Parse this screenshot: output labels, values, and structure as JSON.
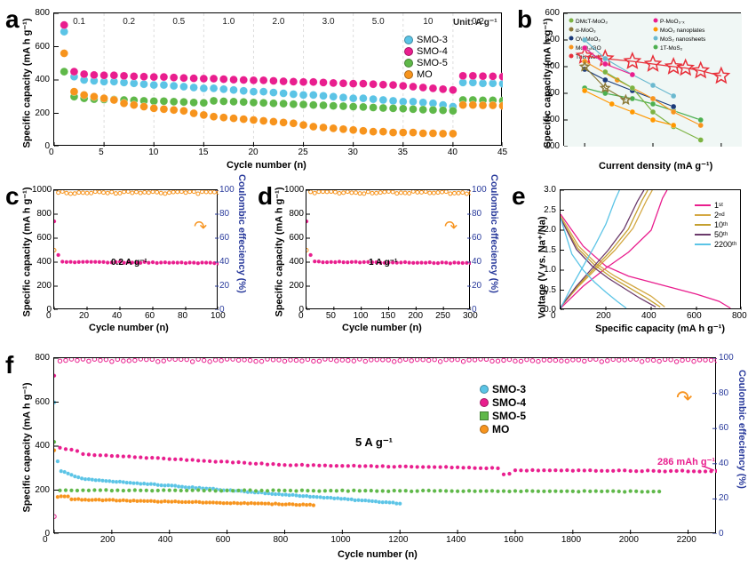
{
  "panel_a": {
    "label": "a",
    "type": "scatter",
    "xlabel": "Cycle number (n)",
    "ylabel": "Specific capacity (mA h g⁻¹)",
    "xlim": [
      0,
      45
    ],
    "ylim": [
      0,
      800
    ],
    "xtick_step": 5,
    "ytick_step": 200,
    "bg": "#ffffff",
    "rate_labels": [
      "0.1",
      "0.2",
      "0.5",
      "1.0",
      "2.0",
      "3.0",
      "5.0",
      "10",
      "0.2"
    ],
    "rate_note": "Unit: A g⁻¹",
    "grid_color": "#dddddd",
    "series": [
      {
        "name": "SMO-3",
        "color": "#5bc4e6",
        "x": [
          1,
          2,
          3,
          4,
          5,
          6,
          7,
          8,
          9,
          10,
          11,
          12,
          13,
          14,
          15,
          16,
          17,
          18,
          19,
          20,
          21,
          22,
          23,
          24,
          25,
          26,
          27,
          28,
          29,
          30,
          31,
          32,
          33,
          34,
          35,
          36,
          37,
          38,
          39,
          40,
          41,
          42,
          43,
          44,
          45
        ],
        "y": [
          690,
          420,
          400,
          395,
          390,
          390,
          385,
          380,
          375,
          370,
          370,
          365,
          360,
          355,
          350,
          350,
          345,
          340,
          335,
          330,
          330,
          325,
          320,
          315,
          310,
          310,
          305,
          300,
          295,
          290,
          290,
          285,
          280,
          275,
          270,
          270,
          265,
          260,
          250,
          240,
          385,
          385,
          380,
          380,
          378
        ]
      },
      {
        "name": "SMO-4",
        "color": "#e91e8e",
        "x": [
          1,
          2,
          3,
          4,
          5,
          6,
          7,
          8,
          9,
          10,
          11,
          12,
          13,
          14,
          15,
          16,
          17,
          18,
          19,
          20,
          21,
          22,
          23,
          24,
          25,
          26,
          27,
          28,
          29,
          30,
          31,
          32,
          33,
          34,
          35,
          36,
          37,
          38,
          39,
          40,
          41,
          42,
          43,
          44,
          45
        ],
        "y": [
          730,
          450,
          435,
          430,
          428,
          428,
          425,
          422,
          420,
          418,
          418,
          415,
          412,
          410,
          408,
          408,
          405,
          402,
          400,
          398,
          398,
          395,
          392,
          390,
          388,
          388,
          385,
          382,
          380,
          378,
          378,
          375,
          372,
          370,
          365,
          360,
          355,
          350,
          345,
          340,
          425,
          425,
          423,
          422,
          420
        ]
      },
      {
        "name": "SMO-5",
        "color": "#5fb849",
        "x": [
          1,
          2,
          3,
          4,
          5,
          6,
          7,
          8,
          9,
          10,
          11,
          12,
          13,
          14,
          15,
          16,
          17,
          18,
          19,
          20,
          21,
          22,
          23,
          24,
          25,
          26,
          27,
          28,
          29,
          30,
          31,
          32,
          33,
          34,
          35,
          36,
          37,
          38,
          39,
          40,
          41,
          42,
          43,
          44,
          45
        ],
        "y": [
          450,
          300,
          290,
          285,
          283,
          283,
          280,
          278,
          275,
          273,
          273,
          270,
          268,
          265,
          263,
          275,
          272,
          270,
          268,
          265,
          263,
          260,
          258,
          255,
          253,
          250,
          248,
          245,
          243,
          240,
          238,
          235,
          232,
          230,
          228,
          225,
          222,
          220,
          218,
          215,
          280,
          280,
          278,
          278,
          276
        ]
      },
      {
        "name": "MO",
        "color": "#f7941d",
        "x": [
          1,
          2,
          3,
          4,
          5,
          6,
          7,
          8,
          9,
          10,
          11,
          12,
          13,
          14,
          15,
          16,
          17,
          18,
          19,
          20,
          21,
          22,
          23,
          24,
          25,
          26,
          27,
          28,
          29,
          30,
          31,
          32,
          33,
          34,
          35,
          36,
          37,
          38,
          39,
          40,
          41,
          42,
          43,
          44,
          45
        ],
        "y": [
          560,
          330,
          310,
          300,
          290,
          280,
          260,
          250,
          240,
          230,
          225,
          220,
          215,
          200,
          190,
          180,
          175,
          170,
          165,
          160,
          155,
          150,
          145,
          140,
          130,
          120,
          115,
          110,
          105,
          100,
          95,
          90,
          90,
          85,
          85,
          85,
          80,
          80,
          78,
          78,
          250,
          250,
          248,
          248,
          245
        ]
      }
    ]
  },
  "panel_b": {
    "label": "b",
    "type": "scatter-log",
    "xlabel": "Current density (mA g⁻¹)",
    "ylabel": "Specific capacity (mA h g⁻¹)",
    "xlim_log": [
      50,
      20000
    ],
    "ylim": [
      100,
      600
    ],
    "ytick_step": 100,
    "bg": "#f0f7f5",
    "legend_items": [
      {
        "name": "DMcT-MoO₃",
        "color": "#7cb342",
        "marker": "circle"
      },
      {
        "name": "P-MoO₃·ₓ",
        "color": "#e91e8e",
        "marker": "square"
      },
      {
        "name": "α-MoO₃",
        "color": "#8d7b3a",
        "marker": "star"
      },
      {
        "name": "MoO₃ nanoplates",
        "color": "#ff9800",
        "marker": "circle"
      },
      {
        "name": "OV-MoO₃",
        "color": "#1a3a7a",
        "marker": "diamond"
      },
      {
        "name": "MoS₂ nanosheets",
        "color": "#6bb9cf",
        "marker": "hex"
      },
      {
        "name": "MoO₃/GO",
        "color": "#f7941d",
        "marker": "square"
      },
      {
        "name": "1T-MoS₂",
        "color": "#4caf50",
        "marker": "triangle"
      },
      {
        "name": "This work",
        "color": "#e8303a",
        "marker": "star"
      }
    ],
    "series": [
      {
        "name": "This work",
        "color": "#e8303a",
        "marker": "star",
        "size": 9,
        "x": [
          100,
          200,
          500,
          1000,
          2000,
          3000,
          5000,
          10000
        ],
        "y": [
          440,
          430,
          420,
          410,
          400,
          395,
          385,
          365
        ]
      },
      {
        "name": "1T-MoS₂",
        "color": "#4caf50",
        "marker": "triangle",
        "x": [
          100,
          200,
          500,
          1000,
          2000,
          5000
        ],
        "y": [
          320,
          300,
          280,
          260,
          235,
          200
        ]
      },
      {
        "name": "MoS₂",
        "color": "#6bb9cf",
        "marker": "hex",
        "x": [
          100,
          200,
          500,
          1000,
          2000
        ],
        "y": [
          500,
          430,
          370,
          330,
          290
        ]
      },
      {
        "name": "OV-MoO₃",
        "color": "#1a3a7a",
        "marker": "diamond",
        "x": [
          100,
          200,
          500,
          1000,
          2000
        ],
        "y": [
          390,
          350,
          310,
          280,
          250
        ]
      },
      {
        "name": "MoO₃/GO",
        "color": "#f7941d",
        "marker": "square",
        "x": [
          100,
          300,
          1000,
          2000,
          5000
        ],
        "y": [
          420,
          350,
          280,
          230,
          180
        ]
      },
      {
        "name": "DMcT",
        "color": "#7cb342",
        "marker": "circle",
        "x": [
          200,
          500,
          1000,
          2000,
          5000
        ],
        "y": [
          380,
          320,
          230,
          175,
          125
        ]
      },
      {
        "name": "P-MoO₃",
        "color": "#e91e8e",
        "marker": "square",
        "x": [
          100,
          200,
          500
        ],
        "y": [
          470,
          410,
          370
        ]
      },
      {
        "name": "α-MoO₃",
        "color": "#8d7b3a",
        "marker": "star",
        "x": [
          100,
          200,
          400
        ],
        "y": [
          400,
          320,
          275
        ]
      },
      {
        "name": "nanoplates",
        "color": "#ff9800",
        "marker": "circle",
        "x": [
          100,
          250,
          500,
          1000,
          2000
        ],
        "y": [
          310,
          260,
          230,
          200,
          180
        ]
      }
    ]
  },
  "panel_c": {
    "label": "c",
    "type": "cycling-dual",
    "xlabel": "Cycle number (n)",
    "ylabel": "Specific capacity (mA h g⁻¹)",
    "y2label": "Coulombic effeciency (%)",
    "xlim": [
      0,
      100
    ],
    "ylim": [
      0,
      1000
    ],
    "y2lim": [
      0,
      100
    ],
    "xtick_step": 20,
    "ytick_step": 200,
    "y2tick_step": 20,
    "rate_text": "0.2 A g⁻¹",
    "capacity_color": "#e91e8e",
    "ce_color": "#f7941d"
  },
  "panel_d": {
    "label": "d",
    "type": "cycling-dual",
    "xlabel": "Cycle number (n)",
    "ylabel": "Specific capacity (mA h g⁻¹)",
    "y2label": "Coulombic effeciency (%)",
    "xlim": [
      0,
      300
    ],
    "ylim": [
      0,
      1000
    ],
    "y2lim": [
      0,
      100
    ],
    "xtick_step": 50,
    "ytick_step": 200,
    "y2tick_step": 20,
    "rate_text": "1 A g⁻¹",
    "capacity_color": "#e91e8e",
    "ce_color": "#f7941d"
  },
  "panel_e": {
    "label": "e",
    "type": "line",
    "xlabel": "Specific capacity (mA h g⁻¹)",
    "ylabel": "Voltage (V vs. Na⁺/Na)",
    "xlim": [
      0,
      800
    ],
    "ylim": [
      0,
      3.0
    ],
    "xtick_step": 200,
    "ytick_step": 0.5,
    "legend_items": [
      {
        "name": "1ˢᵗ",
        "color": "#e91e8e"
      },
      {
        "name": "2ⁿᵈ",
        "color": "#d4a843"
      },
      {
        "name": "10ᵗʰ",
        "color": "#c4a030"
      },
      {
        "name": "50ᵗʰ",
        "color": "#6b3a6b"
      },
      {
        "name": "2200ᵗʰ",
        "color": "#5bc4e6"
      }
    ],
    "curves": [
      {
        "name": "1st",
        "color": "#e91e8e",
        "discharge": [
          [
            0,
            2.4
          ],
          [
            100,
            1.6
          ],
          [
            200,
            1.1
          ],
          [
            300,
            0.85
          ],
          [
            400,
            0.7
          ],
          [
            500,
            0.55
          ],
          [
            600,
            0.4
          ],
          [
            700,
            0.22
          ],
          [
            750,
            0.05
          ]
        ],
        "charge": [
          [
            0,
            0.05
          ],
          [
            100,
            0.6
          ],
          [
            200,
            1.05
          ],
          [
            300,
            1.45
          ],
          [
            400,
            2.0
          ],
          [
            450,
            2.8
          ],
          [
            470,
            3.0
          ]
        ]
      },
      {
        "name": "2nd",
        "color": "#d4a843",
        "discharge": [
          [
            0,
            2.35
          ],
          [
            80,
            1.6
          ],
          [
            160,
            1.15
          ],
          [
            240,
            0.85
          ],
          [
            320,
            0.6
          ],
          [
            400,
            0.35
          ],
          [
            460,
            0.08
          ]
        ],
        "charge": [
          [
            0,
            0.08
          ],
          [
            80,
            0.6
          ],
          [
            160,
            1.05
          ],
          [
            240,
            1.5
          ],
          [
            320,
            2.05
          ],
          [
            380,
            2.75
          ],
          [
            405,
            3.0
          ]
        ]
      },
      {
        "name": "10th",
        "color": "#c4a030",
        "discharge": [
          [
            0,
            2.3
          ],
          [
            75,
            1.55
          ],
          [
            150,
            1.13
          ],
          [
            225,
            0.82
          ],
          [
            300,
            0.57
          ],
          [
            375,
            0.32
          ],
          [
            440,
            0.08
          ]
        ],
        "charge": [
          [
            0,
            0.08
          ],
          [
            75,
            0.6
          ],
          [
            150,
            1.05
          ],
          [
            225,
            1.5
          ],
          [
            300,
            2.03
          ],
          [
            360,
            2.75
          ],
          [
            385,
            3.0
          ]
        ]
      },
      {
        "name": "50th",
        "color": "#6b3a6b",
        "discharge": [
          [
            0,
            2.3
          ],
          [
            70,
            1.52
          ],
          [
            140,
            1.1
          ],
          [
            210,
            0.8
          ],
          [
            280,
            0.55
          ],
          [
            350,
            0.3
          ],
          [
            420,
            0.08
          ]
        ],
        "charge": [
          [
            0,
            0.08
          ],
          [
            70,
            0.6
          ],
          [
            140,
            1.05
          ],
          [
            210,
            1.5
          ],
          [
            280,
            2.03
          ],
          [
            340,
            2.73
          ],
          [
            368,
            3.0
          ]
        ]
      },
      {
        "name": "2200th",
        "color": "#5bc4e6",
        "discharge": [
          [
            0,
            2.3
          ],
          [
            50,
            1.4
          ],
          [
            100,
            1.0
          ],
          [
            150,
            0.7
          ],
          [
            200,
            0.45
          ],
          [
            250,
            0.22
          ],
          [
            290,
            0.05
          ]
        ],
        "charge": [
          [
            0,
            0.05
          ],
          [
            50,
            0.6
          ],
          [
            100,
            1.1
          ],
          [
            150,
            1.6
          ],
          [
            200,
            2.15
          ],
          [
            240,
            2.75
          ],
          [
            260,
            3.0
          ]
        ]
      }
    ]
  },
  "panel_f": {
    "label": "f",
    "type": "cycling-long",
    "xlabel": "Cycle number (n)",
    "ylabel": "Specific capacity (mA h g⁻¹)",
    "y2label": "Coulombic effeciency (%)",
    "xlim": [
      0,
      2300
    ],
    "ylim": [
      0,
      800
    ],
    "y2lim": [
      0,
      100
    ],
    "xtick_step": 200,
    "ytick_step": 200,
    "y2tick_step": 20,
    "rate_text": "5 A g⁻¹",
    "final_cap": "286 mAh g⁻¹",
    "ce_color": "#e91e8e",
    "series": [
      {
        "name": "SMO-3",
        "color": "#5bc4e6",
        "marker": "circle"
      },
      {
        "name": "SMO-4",
        "color": "#e91e8e",
        "marker": "circle"
      },
      {
        "name": "SMO-5",
        "color": "#5fb849",
        "marker": "square"
      },
      {
        "name": "MO",
        "color": "#f7941d",
        "marker": "circle"
      }
    ]
  }
}
